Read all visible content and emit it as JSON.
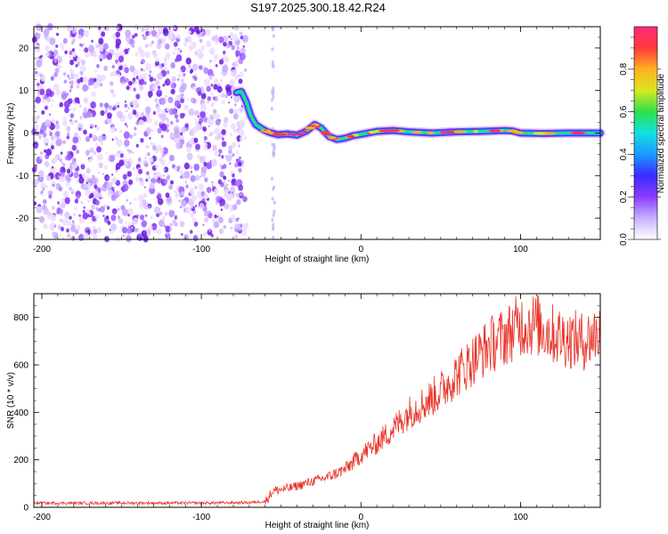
{
  "title": "S197.2025.300.18.42.R24",
  "chart_data": [
    {
      "type": "heatmap",
      "name": "spectrogram",
      "xlabel": "Height of straight line (km)",
      "ylabel": "Frequency (Hz)",
      "xlim": [
        -205,
        150
      ],
      "ylim": [
        -25,
        25
      ],
      "xticks": [
        -200,
        -100,
        0,
        100
      ],
      "yticks": [
        -20,
        -10,
        0,
        10,
        20
      ],
      "colorbar": {
        "label": "Normalized spectral amplitude",
        "range": [
          0,
          1
        ],
        "ticks": [
          0,
          0.2,
          0.4,
          0.6,
          0.8
        ],
        "tick_labels": [
          "0.0",
          "0.2",
          "0.4",
          "0.6",
          "0.8"
        ],
        "colors": [
          "#ffffff",
          "#c8b0ff",
          "#8a3cff",
          "#3b2bff",
          "#1a9aff",
          "#12e0e0",
          "#2fe04a",
          "#d8e820",
          "#ffb020",
          "#ff3a3a",
          "#ff2a7a"
        ]
      },
      "noise_region_km": [
        -205,
        -72
      ],
      "signal_track": [
        {
          "x": -78,
          "y": 9.5
        },
        {
          "x": -75,
          "y": 9.8
        },
        {
          "x": -72,
          "y": 7.5
        },
        {
          "x": -69,
          "y": 4.0
        },
        {
          "x": -66,
          "y": 2.0
        },
        {
          "x": -62,
          "y": 1.0
        },
        {
          "x": -58,
          "y": 0.2
        },
        {
          "x": -52,
          "y": -0.4
        },
        {
          "x": -46,
          "y": -0.2
        },
        {
          "x": -40,
          "y": -0.5
        },
        {
          "x": -34,
          "y": 0.5
        },
        {
          "x": -29,
          "y": 2.0
        },
        {
          "x": -25,
          "y": 1.2
        },
        {
          "x": -20,
          "y": -0.8
        },
        {
          "x": -15,
          "y": -1.5
        },
        {
          "x": -10,
          "y": -1.2
        },
        {
          "x": -5,
          "y": -0.6
        },
        {
          "x": 0,
          "y": -0.3
        },
        {
          "x": 10,
          "y": 0.4
        },
        {
          "x": 20,
          "y": 0.6
        },
        {
          "x": 30,
          "y": 0.3
        },
        {
          "x": 45,
          "y": 0.0
        },
        {
          "x": 60,
          "y": 0.3
        },
        {
          "x": 75,
          "y": 0.4
        },
        {
          "x": 90,
          "y": 0.6
        },
        {
          "x": 95,
          "y": 0.5
        },
        {
          "x": 100,
          "y": 0.0
        },
        {
          "x": 115,
          "y": -0.1
        },
        {
          "x": 130,
          "y": 0.0
        },
        {
          "x": 150,
          "y": 0.0
        }
      ]
    },
    {
      "type": "line",
      "name": "snr",
      "xlabel": "Height of straight line (km)",
      "ylabel": "SNR (10 * v/v)",
      "xlim": [
        -205,
        150
      ],
      "ylim": [
        0,
        900
      ],
      "xticks": [
        -200,
        -100,
        0,
        100
      ],
      "yticks": [
        0,
        200,
        400,
        600,
        800
      ],
      "color": "#e8342a",
      "series_trend": [
        {
          "x": -205,
          "y": 18
        },
        {
          "x": -150,
          "y": 18
        },
        {
          "x": -100,
          "y": 18
        },
        {
          "x": -70,
          "y": 20
        },
        {
          "x": -60,
          "y": 25
        },
        {
          "x": -55,
          "y": 70
        },
        {
          "x": -45,
          "y": 80
        },
        {
          "x": -30,
          "y": 110
        },
        {
          "x": -20,
          "y": 130
        },
        {
          "x": -10,
          "y": 160
        },
        {
          "x": 0,
          "y": 220
        },
        {
          "x": 10,
          "y": 270
        },
        {
          "x": 20,
          "y": 330
        },
        {
          "x": 30,
          "y": 400
        },
        {
          "x": 40,
          "y": 440
        },
        {
          "x": 50,
          "y": 490
        },
        {
          "x": 60,
          "y": 560
        },
        {
          "x": 70,
          "y": 620
        },
        {
          "x": 80,
          "y": 680
        },
        {
          "x": 90,
          "y": 720
        },
        {
          "x": 100,
          "y": 770
        },
        {
          "x": 110,
          "y": 770
        },
        {
          "x": 120,
          "y": 730
        },
        {
          "x": 130,
          "y": 710
        },
        {
          "x": 140,
          "y": 700
        },
        {
          "x": 150,
          "y": 740
        }
      ]
    }
  ]
}
